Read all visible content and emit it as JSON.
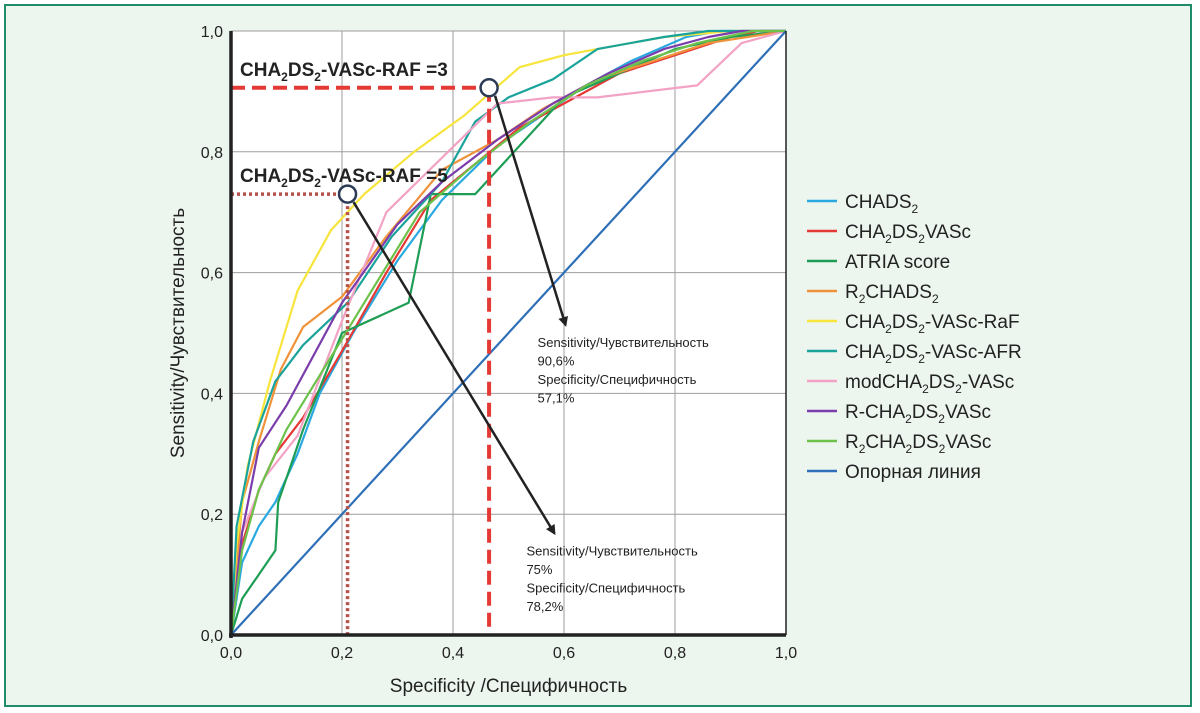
{
  "chart_data": {
    "type": "line",
    "xlabel": "Specificity /Специфичность",
    "ylabel": "Sensitivity/Чувствительность",
    "xlim": [
      0,
      1
    ],
    "ylim": [
      0,
      1
    ],
    "x_ticks": [
      "0,0",
      "0,2",
      "0,4",
      "0,6",
      "0,8",
      "1,0"
    ],
    "y_ticks": [
      "0,0",
      "0,2",
      "0,4",
      "0,6",
      "0,8",
      "1,0"
    ],
    "grid": true,
    "legend_position": "right",
    "series": [
      {
        "name": "CHADS",
        "sub": "2",
        "color": "#2aa9e0",
        "points": [
          [
            0,
            0
          ],
          [
            0.02,
            0.12
          ],
          [
            0.05,
            0.18
          ],
          [
            0.08,
            0.22
          ],
          [
            0.12,
            0.3
          ],
          [
            0.16,
            0.4
          ],
          [
            0.22,
            0.5
          ],
          [
            0.3,
            0.62
          ],
          [
            0.38,
            0.72
          ],
          [
            0.48,
            0.81
          ],
          [
            0.56,
            0.86
          ],
          [
            0.64,
            0.91
          ],
          [
            0.72,
            0.95
          ],
          [
            0.82,
            0.99
          ],
          [
            0.88,
            1.0
          ],
          [
            1.0,
            1.0
          ]
        ]
      },
      {
        "name": "CHA2DS2VASc",
        "sub": "",
        "color": "#e53935",
        "points": [
          [
            0,
            0
          ],
          [
            0.02,
            0.15
          ],
          [
            0.05,
            0.24
          ],
          [
            0.08,
            0.3
          ],
          [
            0.13,
            0.36
          ],
          [
            0.2,
            0.47
          ],
          [
            0.28,
            0.6
          ],
          [
            0.36,
            0.72
          ],
          [
            0.44,
            0.78
          ],
          [
            0.52,
            0.84
          ],
          [
            0.6,
            0.88
          ],
          [
            0.7,
            0.93
          ],
          [
            0.8,
            0.96
          ],
          [
            0.9,
            0.99
          ],
          [
            0.95,
            1.0
          ],
          [
            1.0,
            1.0
          ]
        ]
      },
      {
        "name": "ATRIA score",
        "sub": "",
        "color": "#1e9e55",
        "points": [
          [
            0,
            0
          ],
          [
            0.02,
            0.06
          ],
          [
            0.05,
            0.1
          ],
          [
            0.08,
            0.14
          ],
          [
            0.085,
            0.22
          ],
          [
            0.1,
            0.26
          ],
          [
            0.13,
            0.34
          ],
          [
            0.2,
            0.5
          ],
          [
            0.32,
            0.55
          ],
          [
            0.36,
            0.73
          ],
          [
            0.44,
            0.73
          ],
          [
            0.52,
            0.81
          ],
          [
            0.6,
            0.89
          ],
          [
            0.7,
            0.93
          ],
          [
            0.8,
            0.97
          ],
          [
            0.9,
            0.99
          ],
          [
            1.0,
            1.0
          ]
        ]
      },
      {
        "name": "R2CHADS2",
        "sub": "",
        "color": "#f0923a",
        "points": [
          [
            0,
            0
          ],
          [
            0.02,
            0.22
          ],
          [
            0.05,
            0.32
          ],
          [
            0.09,
            0.44
          ],
          [
            0.13,
            0.51
          ],
          [
            0.2,
            0.56
          ],
          [
            0.28,
            0.66
          ],
          [
            0.38,
            0.77
          ],
          [
            0.48,
            0.82
          ],
          [
            0.56,
            0.87
          ],
          [
            0.66,
            0.92
          ],
          [
            0.76,
            0.95
          ],
          [
            0.86,
            0.98
          ],
          [
            1.0,
            1.0
          ]
        ]
      },
      {
        "name": "CHA2DS2-VASc-RaF",
        "sub": "",
        "color": "#f7e53c",
        "points": [
          [
            0,
            0
          ],
          [
            0.01,
            0.15
          ],
          [
            0.03,
            0.28
          ],
          [
            0.07,
            0.42
          ],
          [
            0.12,
            0.57
          ],
          [
            0.18,
            0.67
          ],
          [
            0.24,
            0.73
          ],
          [
            0.33,
            0.8
          ],
          [
            0.42,
            0.86
          ],
          [
            0.52,
            0.94
          ],
          [
            0.6,
            0.96
          ],
          [
            0.66,
            0.97
          ],
          [
            0.78,
            0.99
          ],
          [
            0.9,
            1.0
          ],
          [
            1.0,
            1.0
          ]
        ]
      },
      {
        "name": "CHA2DS2-VASc-AFR",
        "sub": "",
        "color": "#1aa39a",
        "points": [
          [
            0,
            0
          ],
          [
            0.01,
            0.18
          ],
          [
            0.04,
            0.32
          ],
          [
            0.08,
            0.42
          ],
          [
            0.13,
            0.48
          ],
          [
            0.21,
            0.55
          ],
          [
            0.29,
            0.66
          ],
          [
            0.38,
            0.75
          ],
          [
            0.44,
            0.85
          ],
          [
            0.5,
            0.89
          ],
          [
            0.58,
            0.92
          ],
          [
            0.66,
            0.97
          ],
          [
            0.78,
            0.99
          ],
          [
            0.86,
            1.0
          ],
          [
            1.0,
            1.0
          ]
        ]
      },
      {
        "name": "modCHA2DS2-VASc",
        "sub": "",
        "color": "#f2a2c4",
        "points": [
          [
            0,
            0
          ],
          [
            0.02,
            0.17
          ],
          [
            0.06,
            0.26
          ],
          [
            0.12,
            0.33
          ],
          [
            0.2,
            0.52
          ],
          [
            0.28,
            0.7
          ],
          [
            0.38,
            0.79
          ],
          [
            0.48,
            0.88
          ],
          [
            0.58,
            0.89
          ],
          [
            0.66,
            0.89
          ],
          [
            0.75,
            0.9
          ],
          [
            0.84,
            0.91
          ],
          [
            0.92,
            0.98
          ],
          [
            1.0,
            1.0
          ]
        ]
      },
      {
        "name": "R-CHA2DS2VASc",
        "sub": "",
        "color": "#7a3dab",
        "points": [
          [
            0,
            0
          ],
          [
            0.02,
            0.17
          ],
          [
            0.05,
            0.31
          ],
          [
            0.1,
            0.38
          ],
          [
            0.2,
            0.55
          ],
          [
            0.3,
            0.68
          ],
          [
            0.38,
            0.75
          ],
          [
            0.48,
            0.82
          ],
          [
            0.58,
            0.88
          ],
          [
            0.68,
            0.93
          ],
          [
            0.78,
            0.97
          ],
          [
            0.86,
            0.99
          ],
          [
            0.92,
            1.0
          ],
          [
            1.0,
            1.0
          ]
        ]
      },
      {
        "name": "R2CHA2DS2VASc",
        "sub": "",
        "color": "#6cc24a",
        "points": [
          [
            0,
            0
          ],
          [
            0.02,
            0.14
          ],
          [
            0.05,
            0.24
          ],
          [
            0.1,
            0.34
          ],
          [
            0.18,
            0.46
          ],
          [
            0.26,
            0.58
          ],
          [
            0.34,
            0.7
          ],
          [
            0.44,
            0.78
          ],
          [
            0.54,
            0.85
          ],
          [
            0.64,
            0.91
          ],
          [
            0.74,
            0.95
          ],
          [
            0.84,
            0.98
          ],
          [
            0.94,
            1.0
          ],
          [
            1.0,
            1.0
          ]
        ]
      },
      {
        "name": "Опорная линия",
        "sub": "",
        "color": "#2f6fb7",
        "points": [
          [
            0,
            0
          ],
          [
            1,
            1
          ]
        ]
      }
    ],
    "annotations": [
      {
        "marker": [
          0.465,
          0.906
        ],
        "line_style": "dashed",
        "label_at": [
          0.61,
          0.5
        ],
        "label_prefix": "CHA",
        "label_suffix": "-VASc-RAF =3",
        "text": [
          "Sensitivity/Чувствительность",
          "90,6%",
          "Specificity/Специфичность",
          "57,1%"
        ]
      },
      {
        "marker": [
          0.21,
          0.73
        ],
        "line_style": "dotted",
        "label_at": [
          0.59,
          0.155
        ],
        "label_prefix": "CHA",
        "label_suffix": "-VASc-RAF =5",
        "text": [
          "Sensitivity/Чувствительность",
          "75%",
          "Specificity/Специфичность",
          "78,2%"
        ]
      }
    ]
  },
  "legend": [
    {
      "parts": [
        {
          "t": "CHADS"
        },
        {
          "t": "2",
          "sub": true
        }
      ]
    },
    {
      "parts": [
        {
          "t": "CHA"
        },
        {
          "t": "2",
          "sub": true
        },
        {
          "t": "DS"
        },
        {
          "t": "2",
          "sub": true
        },
        {
          "t": "VASc"
        }
      ]
    },
    {
      "parts": [
        {
          "t": "ATRIA score"
        }
      ]
    },
    {
      "parts": [
        {
          "t": "R"
        },
        {
          "t": "2",
          "sub": true
        },
        {
          "t": "CHADS"
        },
        {
          "t": "2",
          "sub": true
        }
      ]
    },
    {
      "parts": [
        {
          "t": "CHA"
        },
        {
          "t": "2",
          "sub": true
        },
        {
          "t": "DS"
        },
        {
          "t": "2",
          "sub": true
        },
        {
          "t": "-VASc-RaF"
        }
      ]
    },
    {
      "parts": [
        {
          "t": "CHA"
        },
        {
          "t": "2",
          "sub": true
        },
        {
          "t": "DS"
        },
        {
          "t": "2",
          "sub": true
        },
        {
          "t": "-VASc-AFR"
        }
      ]
    },
    {
      "parts": [
        {
          "t": "modCHA"
        },
        {
          "t": "2",
          "sub": true
        },
        {
          "t": "DS"
        },
        {
          "t": "2",
          "sub": true
        },
        {
          "t": "-VASc"
        }
      ]
    },
    {
      "parts": [
        {
          "t": "R-CHA"
        },
        {
          "t": "2",
          "sub": true
        },
        {
          "t": "DS"
        },
        {
          "t": "2",
          "sub": true
        },
        {
          "t": "VASc"
        }
      ]
    },
    {
      "parts": [
        {
          "t": "R"
        },
        {
          "t": "2",
          "sub": true
        },
        {
          "t": "CHA"
        },
        {
          "t": "2",
          "sub": true
        },
        {
          "t": "DS"
        },
        {
          "t": "2",
          "sub": true
        },
        {
          "t": "VASc"
        }
      ]
    },
    {
      "parts": [
        {
          "t": "Опорная линия"
        }
      ]
    }
  ],
  "colors": {
    "panel_background": "#edf5ef",
    "panel_border": "#1f8c6a",
    "plot_background": "#ffffff",
    "grid": "#9e9e9e",
    "threshold_marker": "#e53935",
    "arrow": "#222222"
  }
}
